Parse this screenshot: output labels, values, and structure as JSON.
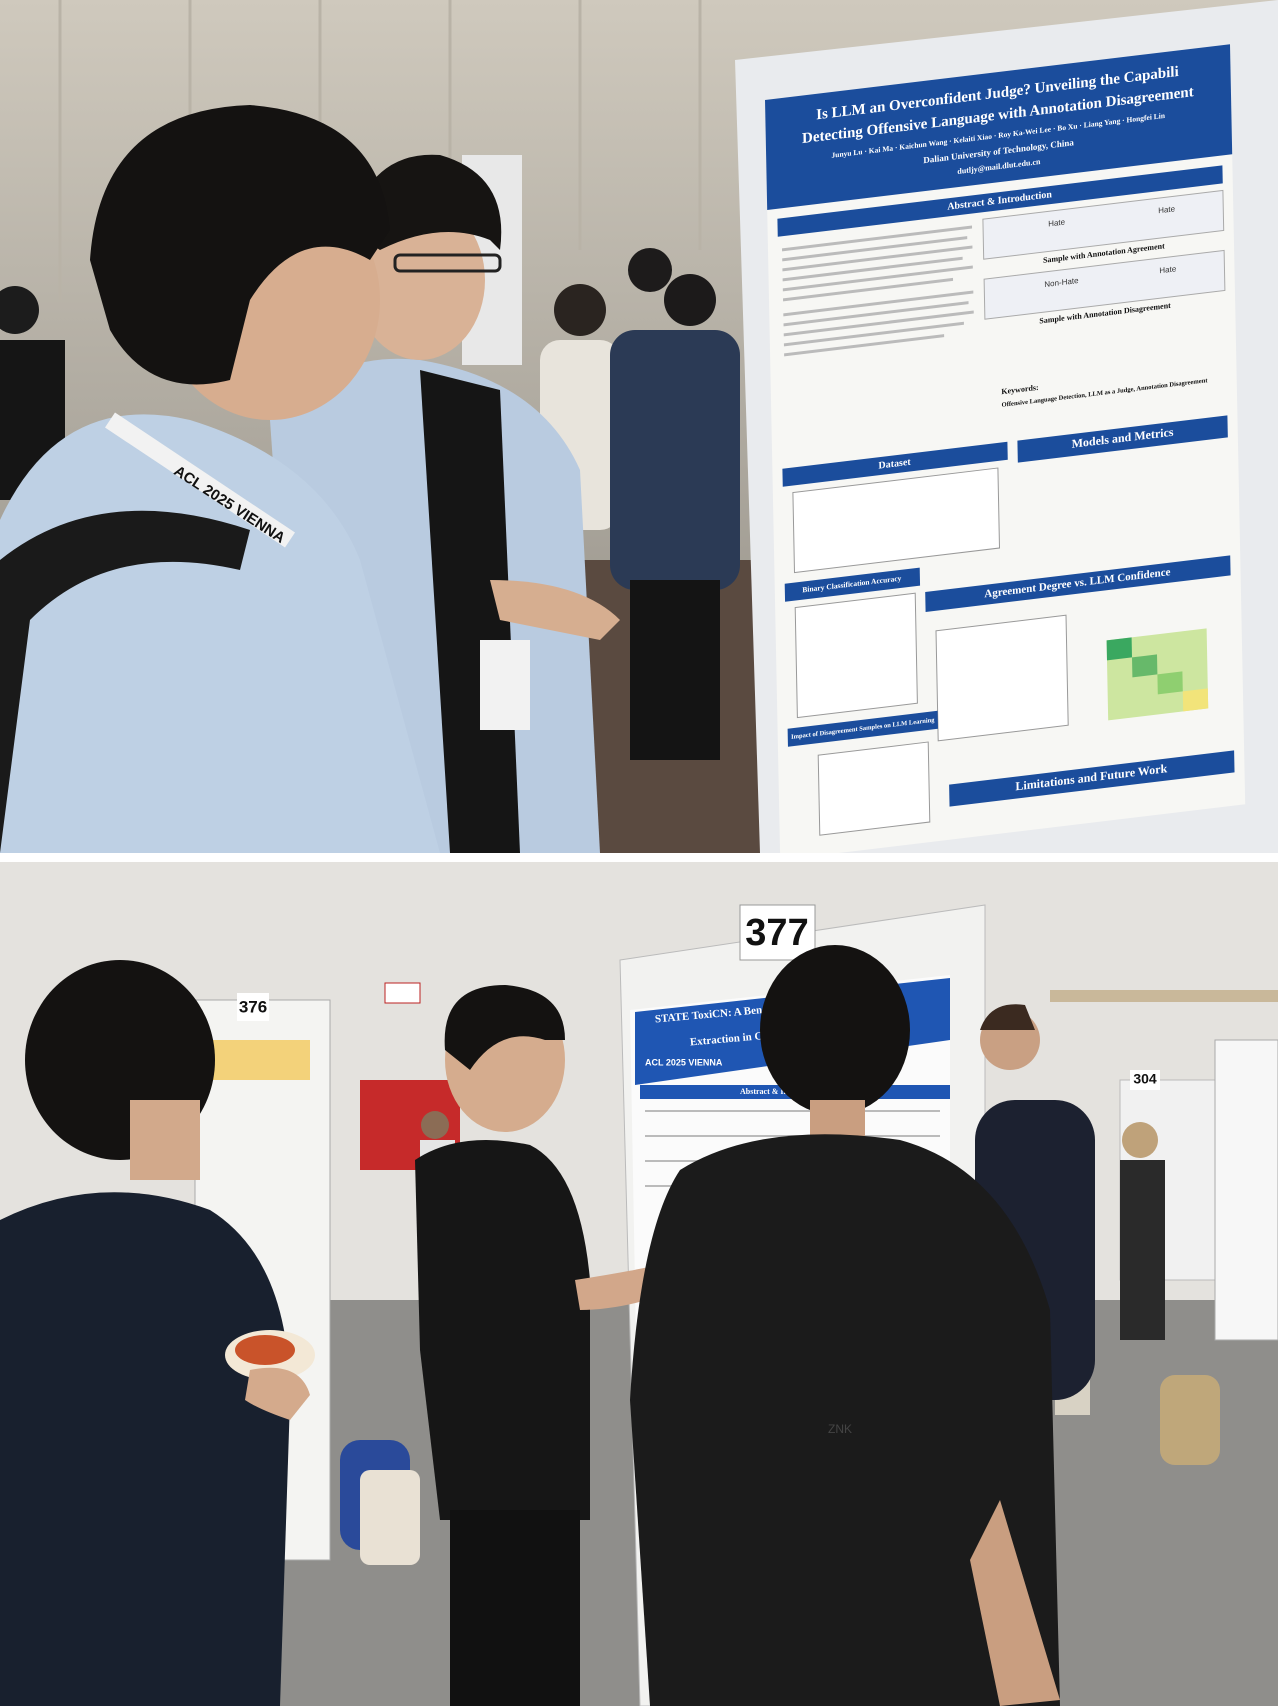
{
  "top_photo": {
    "poster": {
      "title": "Is LLM an Overconfident Judge? Unveiling the Capabili",
      "subtitle": "Detecting Offensive Language with Annotation Disagreement",
      "authors": "Junyu Lu · Kai Ma · Kaichun Wang · Kelaiti Xiao · Roy Ka-Wei Lee · Bo Xu · Liang Yang · Hongfei Lin",
      "affiliation": "Dalian University of Technology, China",
      "email": "dutljy@mail.dlut.edu.cn",
      "sections": [
        "Abstract & Introduction",
        "Dataset",
        "Models and Metrics",
        "Binary Classification Accuracy",
        "Agreement Degree vs. LLM Confidence",
        "Impact of Disagreement Samples on LLM Learning",
        "Limitations and Future Work"
      ],
      "samples": [
        "Sample with Annotation Agreement",
        "Sample with Annotation Disagreement"
      ],
      "tags": [
        "Hate",
        "Non-Hate"
      ],
      "keywords_label": "Keywords:",
      "keywords": "Offensive Language Detection, LLM as a Judge, Annotation Disagreement"
    },
    "badge": "ACL 2025 VIENNA"
  },
  "bottom_photo": {
    "board_numbers": [
      "377",
      "376",
      "304"
    ],
    "poster": {
      "title": "STATE ToxiCN: A Benchmark for Spa",
      "subtitle": "Extraction in Chinese Ha",
      "section": "Abstract & Introdu",
      "badge": "ACL 2025 VIENNA"
    },
    "shirt": "ZNK"
  }
}
